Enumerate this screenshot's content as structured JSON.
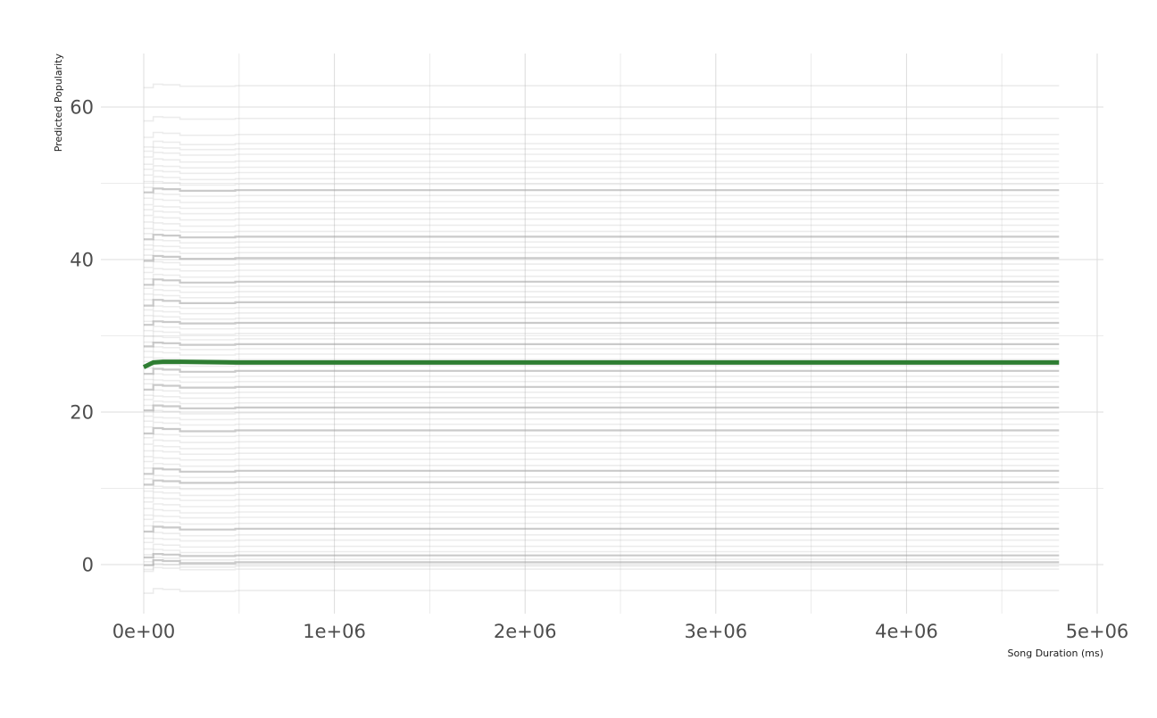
{
  "chart_data": {
    "type": "line",
    "title": "",
    "xlabel": "Song Duration (ms)",
    "ylabel": "Predicted Popularity",
    "xlim": [
      0,
      5000000
    ],
    "ylim": [
      -6.5,
      67
    ],
    "x_ticks": [
      0,
      1000000,
      2000000,
      3000000,
      4000000,
      5000000
    ],
    "x_tick_labels": [
      "0e+00",
      "1e+06",
      "2e+06",
      "3e+06",
      "4e+06",
      "5e+06"
    ],
    "y_ticks": [
      0,
      20,
      40,
      60
    ],
    "y_tick_labels": [
      "0",
      "20",
      "40",
      "60"
    ],
    "grid": true,
    "legend": "none",
    "x_range_of_lines": [
      0,
      4800000
    ],
    "step_points_x": [
      0,
      50000,
      100000,
      190000,
      480000
    ],
    "background_lines_color": "#9e9e9e",
    "highlight_color": "#2e7d32",
    "highlight_series": {
      "x": [
        0,
        50000,
        100000,
        190000,
        480000,
        4800000
      ],
      "y": [
        25.9,
        26.5,
        26.6,
        26.6,
        26.5,
        26.5
      ]
    },
    "background_series_levels": [
      62.8,
      58.5,
      56.4,
      55.2,
      54.5,
      53.8,
      52.9,
      52.1,
      51.4,
      50.6,
      49.9,
      49.1,
      48.4,
      47.6,
      46.8,
      46.1,
      45.3,
      44.5,
      43.7,
      43.0,
      42.3,
      41.6,
      40.9,
      40.2,
      39.4,
      38.6,
      37.8,
      37.1,
      36.5,
      35.8,
      35.1,
      34.4,
      33.7,
      33.0,
      32.3,
      31.7,
      31.0,
      30.3,
      29.6,
      28.9,
      28.3,
      27.6,
      26.9,
      26.1,
      25.4,
      24.7,
      24.0,
      23.3,
      22.6,
      21.9,
      21.2,
      20.6,
      19.9,
      19.1,
      18.4,
      17.6,
      16.9,
      16.1,
      15.3,
      14.6,
      13.8,
      13.0,
      12.3,
      11.5,
      10.8,
      10.0,
      9.2,
      8.5,
      7.7,
      6.9,
      6.2,
      5.4,
      4.7,
      3.9,
      3.2,
      2.4,
      1.7,
      1.2,
      0.7,
      0.3,
      -0.2,
      -0.6,
      -3.4
    ],
    "dark_series_levels": [
      49.1,
      43.0,
      40.2,
      37.1,
      34.4,
      31.7,
      28.9,
      25.4,
      23.3,
      20.6,
      17.6,
      12.3,
      10.8,
      4.7,
      1.2,
      0.3
    ]
  }
}
